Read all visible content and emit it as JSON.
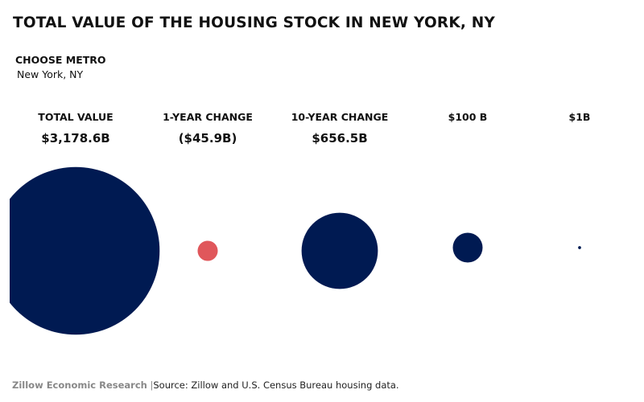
{
  "title": "TOTAL VALUE OF THE HOUSING STOCK IN NEW YORK, NY",
  "metro": {
    "label": "CHOOSE METRO",
    "value": "New York, NY"
  },
  "columns": [
    {
      "header": "TOTAL VALUE",
      "value": "$3,178.6B"
    },
    {
      "header": "1-YEAR CHANGE",
      "value": "($45.9B)"
    },
    {
      "header": "10-YEAR CHANGE",
      "value": "$656.5B"
    },
    {
      "header": "$100 B",
      "value": ""
    },
    {
      "header": "$1B",
      "value": ""
    }
  ],
  "footer": {
    "brand": "Zillow Economic Research",
    "separator": "|",
    "source": "Source: Zillow and U.S. Census Bureau housing data."
  },
  "colors": {
    "positive": "#001a52",
    "negative": "#e0575b"
  },
  "chart_data": {
    "type": "bubble",
    "unit": "billion USD",
    "series": [
      {
        "category": "TOTAL VALUE",
        "value": 3178.6,
        "sign": "positive"
      },
      {
        "category": "1-YEAR CHANGE",
        "value": -45.9,
        "sign": "negative"
      },
      {
        "category": "10-YEAR CHANGE",
        "value": 656.5,
        "sign": "positive"
      },
      {
        "category": "$100 B",
        "value": 100,
        "sign": "positive"
      },
      {
        "category": "$1B",
        "value": 1,
        "sign": "positive"
      }
    ]
  }
}
